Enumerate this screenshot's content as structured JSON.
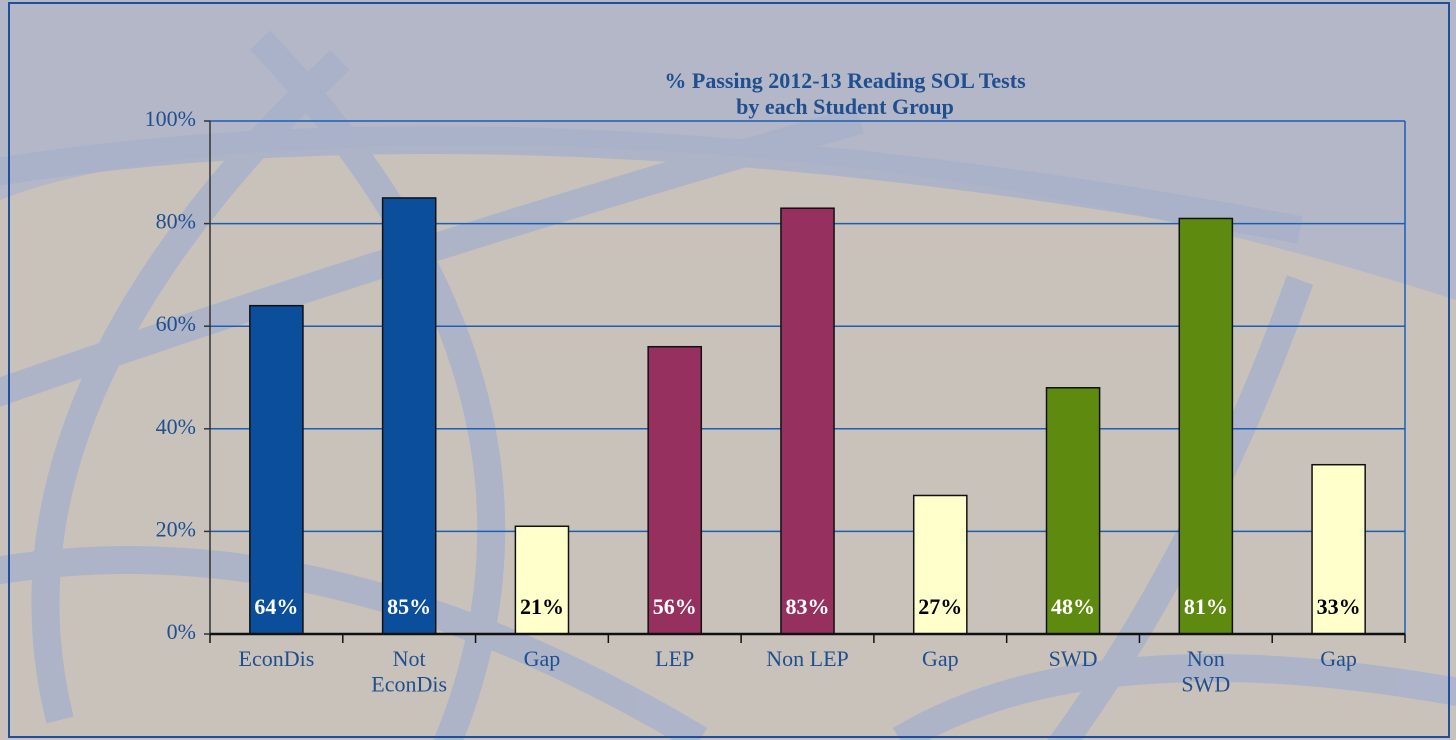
{
  "chart_data": {
    "type": "bar",
    "title": "% Passing 2012-13 Reading SOL Tests",
    "subtitle": "by each Student Group",
    "categories": [
      "EconDis",
      "Not\nEconDis",
      "Gap",
      "LEP",
      "Non LEP",
      "Gap",
      "SWD",
      "Non\nSWD",
      "Gap"
    ],
    "values": [
      64,
      85,
      21,
      56,
      83,
      27,
      48,
      81,
      33
    ],
    "value_labels": [
      "64%",
      "85%",
      "21%",
      "56%",
      "83%",
      "27%",
      "48%",
      "81%",
      "33%"
    ],
    "colors": [
      "#0b4f9c",
      "#0b4f9c",
      "#ffffcc",
      "#96305f",
      "#96305f",
      "#ffffcc",
      "#5f8a10",
      "#5f8a10",
      "#ffffcc"
    ],
    "ylim": [
      0,
      100
    ],
    "yticks": [
      {
        "value": 0,
        "label": "0%"
      },
      {
        "value": 20,
        "label": "20%"
      },
      {
        "value": 40,
        "label": "40%"
      },
      {
        "value": 60,
        "label": "60%"
      },
      {
        "value": 80,
        "label": "80%"
      },
      {
        "value": 100,
        "label": "100%"
      }
    ],
    "grid": true
  }
}
